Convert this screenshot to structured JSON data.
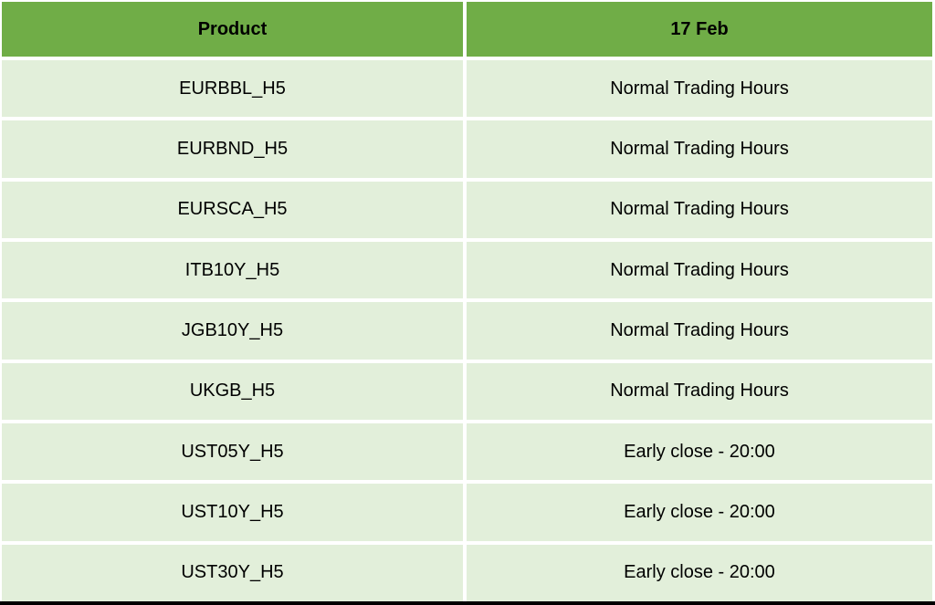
{
  "colors": {
    "header-bg": "#70AD47",
    "row-bg": "#E2EFDA",
    "gap": "#FFFFFF",
    "text": "#000000",
    "bottom-bar": "#000000"
  },
  "table": {
    "columns": [
      "Product",
      "17 Feb"
    ],
    "rows": [
      {
        "product": "EURBBL_H5",
        "hours": "Normal Trading Hours"
      },
      {
        "product": "EURBND_H5",
        "hours": "Normal Trading Hours"
      },
      {
        "product": "EURSCA_H5",
        "hours": "Normal Trading Hours"
      },
      {
        "product": "ITB10Y_H5",
        "hours": "Normal Trading Hours"
      },
      {
        "product": "JGB10Y_H5",
        "hours": "Normal Trading Hours"
      },
      {
        "product": "UKGB_H5",
        "hours": "Normal Trading Hours"
      },
      {
        "product": "UST05Y_H5",
        "hours": "Early close - 20:00"
      },
      {
        "product": "UST10Y_H5",
        "hours": "Early close - 20:00"
      },
      {
        "product": "UST30Y_H5",
        "hours": "Early close - 20:00"
      }
    ]
  }
}
